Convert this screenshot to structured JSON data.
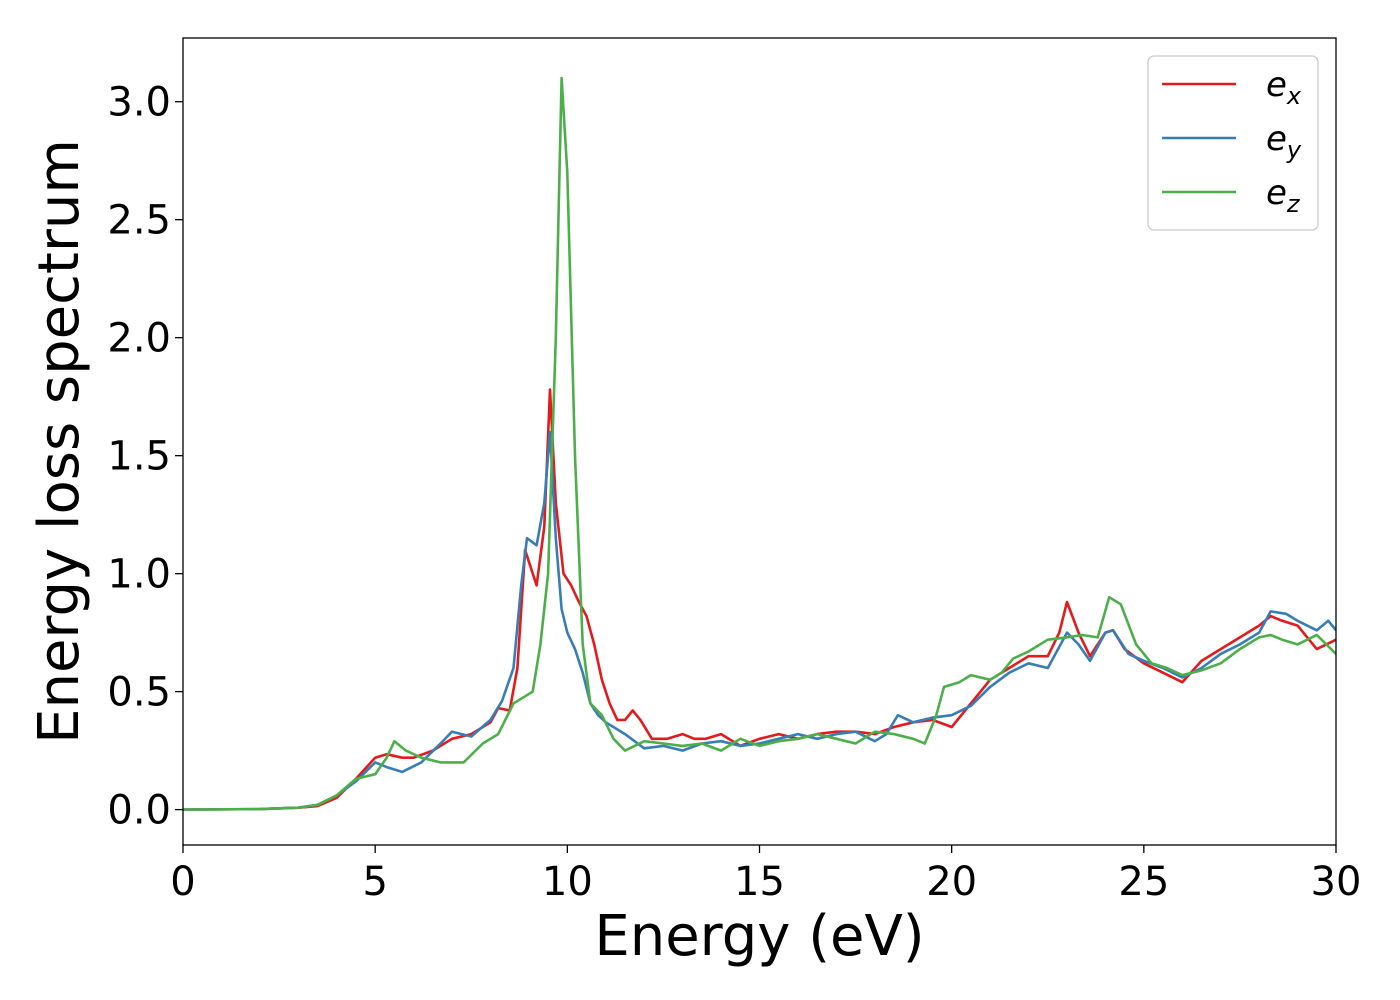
{
  "chart_data": {
    "type": "line",
    "xlabel": "Energy (eV)",
    "ylabel": "Energy loss spectrum",
    "xlim": [
      0,
      30
    ],
    "ylim": [
      -0.15,
      3.27
    ],
    "xticks": [
      "0",
      "5",
      "10",
      "15",
      "20",
      "25",
      "30"
    ],
    "yticks": [
      "0.0",
      "0.5",
      "1.0",
      "1.5",
      "2.0",
      "2.5",
      "3.0"
    ],
    "grid": false,
    "legend_position": "top-right",
    "series": [
      {
        "name": "e",
        "subscript": "x",
        "color": "#e41a1c",
        "points": [
          [
            0,
            0
          ],
          [
            2,
            0.002
          ],
          [
            3,
            0.008
          ],
          [
            3.5,
            0.015
          ],
          [
            4,
            0.05
          ],
          [
            4.5,
            0.13
          ],
          [
            5,
            0.22
          ],
          [
            5.3,
            0.235
          ],
          [
            5.7,
            0.22
          ],
          [
            6,
            0.22
          ],
          [
            6.5,
            0.25
          ],
          [
            7,
            0.3
          ],
          [
            7.5,
            0.32
          ],
          [
            8,
            0.37
          ],
          [
            8.2,
            0.43
          ],
          [
            8.5,
            0.42
          ],
          [
            8.7,
            0.6
          ],
          [
            8.9,
            1.1
          ],
          [
            9.0,
            1.05
          ],
          [
            9.2,
            0.95
          ],
          [
            9.4,
            1.2
          ],
          [
            9.55,
            1.78
          ],
          [
            9.7,
            1.3
          ],
          [
            9.9,
            1.0
          ],
          [
            10.1,
            0.95
          ],
          [
            10.3,
            0.88
          ],
          [
            10.5,
            0.82
          ],
          [
            10.7,
            0.7
          ],
          [
            10.9,
            0.55
          ],
          [
            11.1,
            0.45
          ],
          [
            11.3,
            0.38
          ],
          [
            11.5,
            0.38
          ],
          [
            11.7,
            0.42
          ],
          [
            11.9,
            0.38
          ],
          [
            12.2,
            0.3
          ],
          [
            12.6,
            0.3
          ],
          [
            13.0,
            0.32
          ],
          [
            13.3,
            0.3
          ],
          [
            13.6,
            0.3
          ],
          [
            14.0,
            0.32
          ],
          [
            14.5,
            0.27
          ],
          [
            15.0,
            0.3
          ],
          [
            15.5,
            0.32
          ],
          [
            16.0,
            0.3
          ],
          [
            16.5,
            0.32
          ],
          [
            17.0,
            0.33
          ],
          [
            17.5,
            0.33
          ],
          [
            18.0,
            0.32
          ],
          [
            18.5,
            0.35
          ],
          [
            19.0,
            0.37
          ],
          [
            19.5,
            0.38
          ],
          [
            20.0,
            0.35
          ],
          [
            20.5,
            0.45
          ],
          [
            21.0,
            0.55
          ],
          [
            21.5,
            0.6
          ],
          [
            22.0,
            0.65
          ],
          [
            22.5,
            0.65
          ],
          [
            22.8,
            0.75
          ],
          [
            23.0,
            0.88
          ],
          [
            23.3,
            0.75
          ],
          [
            23.6,
            0.65
          ],
          [
            24.0,
            0.75
          ],
          [
            24.2,
            0.76
          ],
          [
            24.5,
            0.68
          ],
          [
            25.0,
            0.62
          ],
          [
            25.5,
            0.58
          ],
          [
            26.0,
            0.54
          ],
          [
            26.5,
            0.63
          ],
          [
            27.0,
            0.68
          ],
          [
            27.5,
            0.73
          ],
          [
            28.0,
            0.78
          ],
          [
            28.3,
            0.82
          ],
          [
            28.6,
            0.8
          ],
          [
            29.0,
            0.78
          ],
          [
            29.5,
            0.68
          ],
          [
            30.0,
            0.72
          ]
        ]
      },
      {
        "name": "e",
        "subscript": "y",
        "color": "#377eb8",
        "points": [
          [
            0,
            0
          ],
          [
            2,
            0.002
          ],
          [
            3,
            0.008
          ],
          [
            3.5,
            0.02
          ],
          [
            4,
            0.06
          ],
          [
            4.5,
            0.12
          ],
          [
            5,
            0.2
          ],
          [
            5.3,
            0.18
          ],
          [
            5.7,
            0.16
          ],
          [
            6.2,
            0.2
          ],
          [
            6.7,
            0.28
          ],
          [
            7,
            0.33
          ],
          [
            7.5,
            0.31
          ],
          [
            8,
            0.38
          ],
          [
            8.3,
            0.46
          ],
          [
            8.6,
            0.6
          ],
          [
            8.8,
            0.95
          ],
          [
            8.95,
            1.15
          ],
          [
            9.2,
            1.12
          ],
          [
            9.4,
            1.3
          ],
          [
            9.55,
            1.6
          ],
          [
            9.7,
            1.15
          ],
          [
            9.85,
            0.85
          ],
          [
            10.0,
            0.75
          ],
          [
            10.2,
            0.68
          ],
          [
            10.4,
            0.58
          ],
          [
            10.6,
            0.45
          ],
          [
            10.8,
            0.4
          ],
          [
            11.0,
            0.37
          ],
          [
            11.5,
            0.32
          ],
          [
            12.0,
            0.26
          ],
          [
            12.5,
            0.27
          ],
          [
            13.0,
            0.25
          ],
          [
            13.5,
            0.28
          ],
          [
            14.0,
            0.29
          ],
          [
            14.5,
            0.27
          ],
          [
            15.0,
            0.28
          ],
          [
            15.5,
            0.3
          ],
          [
            16.0,
            0.32
          ],
          [
            16.5,
            0.3
          ],
          [
            17.0,
            0.32
          ],
          [
            17.5,
            0.33
          ],
          [
            18.0,
            0.29
          ],
          [
            18.3,
            0.32
          ],
          [
            18.6,
            0.4
          ],
          [
            19.0,
            0.37
          ],
          [
            19.5,
            0.39
          ],
          [
            20.0,
            0.4
          ],
          [
            20.5,
            0.44
          ],
          [
            21.0,
            0.52
          ],
          [
            21.5,
            0.58
          ],
          [
            22.0,
            0.62
          ],
          [
            22.5,
            0.6
          ],
          [
            23.0,
            0.75
          ],
          [
            23.3,
            0.7
          ],
          [
            23.6,
            0.63
          ],
          [
            24.0,
            0.75
          ],
          [
            24.2,
            0.76
          ],
          [
            24.6,
            0.66
          ],
          [
            25.0,
            0.63
          ],
          [
            25.5,
            0.6
          ],
          [
            26.0,
            0.56
          ],
          [
            26.5,
            0.6
          ],
          [
            27.0,
            0.66
          ],
          [
            27.5,
            0.7
          ],
          [
            28.0,
            0.75
          ],
          [
            28.3,
            0.84
          ],
          [
            28.7,
            0.83
          ],
          [
            29.0,
            0.8
          ],
          [
            29.5,
            0.76
          ],
          [
            29.8,
            0.8
          ],
          [
            30.0,
            0.76
          ]
        ]
      },
      {
        "name": "e",
        "subscript": "z",
        "color": "#4daf4a",
        "points": [
          [
            0,
            0
          ],
          [
            2,
            0.002
          ],
          [
            3,
            0.008
          ],
          [
            3.5,
            0.02
          ],
          [
            4,
            0.06
          ],
          [
            4.5,
            0.13
          ],
          [
            5,
            0.15
          ],
          [
            5.3,
            0.22
          ],
          [
            5.5,
            0.29
          ],
          [
            5.8,
            0.25
          ],
          [
            6.2,
            0.22
          ],
          [
            6.7,
            0.2
          ],
          [
            7.3,
            0.2
          ],
          [
            7.8,
            0.28
          ],
          [
            8.2,
            0.32
          ],
          [
            8.6,
            0.45
          ],
          [
            8.9,
            0.48
          ],
          [
            9.1,
            0.5
          ],
          [
            9.3,
            0.7
          ],
          [
            9.5,
            1.0
          ],
          [
            9.7,
            2.0
          ],
          [
            9.85,
            3.1
          ],
          [
            10.0,
            2.7
          ],
          [
            10.2,
            1.5
          ],
          [
            10.4,
            0.7
          ],
          [
            10.6,
            0.45
          ],
          [
            10.9,
            0.4
          ],
          [
            11.2,
            0.3
          ],
          [
            11.5,
            0.25
          ],
          [
            12.0,
            0.29
          ],
          [
            12.5,
            0.28
          ],
          [
            13.0,
            0.27
          ],
          [
            13.5,
            0.28
          ],
          [
            14.0,
            0.25
          ],
          [
            14.5,
            0.3
          ],
          [
            15.0,
            0.27
          ],
          [
            15.5,
            0.29
          ],
          [
            16.0,
            0.3
          ],
          [
            16.5,
            0.32
          ],
          [
            17.0,
            0.3
          ],
          [
            17.5,
            0.28
          ],
          [
            18.0,
            0.33
          ],
          [
            18.5,
            0.32
          ],
          [
            19.0,
            0.3
          ],
          [
            19.3,
            0.28
          ],
          [
            19.6,
            0.4
          ],
          [
            19.8,
            0.52
          ],
          [
            20.2,
            0.54
          ],
          [
            20.5,
            0.57
          ],
          [
            21.0,
            0.55
          ],
          [
            21.3,
            0.58
          ],
          [
            21.6,
            0.64
          ],
          [
            22.0,
            0.67
          ],
          [
            22.5,
            0.72
          ],
          [
            23.0,
            0.73
          ],
          [
            23.4,
            0.74
          ],
          [
            23.8,
            0.73
          ],
          [
            24.1,
            0.9
          ],
          [
            24.4,
            0.87
          ],
          [
            24.8,
            0.7
          ],
          [
            25.2,
            0.62
          ],
          [
            25.6,
            0.6
          ],
          [
            26.0,
            0.57
          ],
          [
            26.5,
            0.59
          ],
          [
            27.0,
            0.62
          ],
          [
            27.5,
            0.68
          ],
          [
            28.0,
            0.73
          ],
          [
            28.3,
            0.74
          ],
          [
            28.6,
            0.72
          ],
          [
            29.0,
            0.7
          ],
          [
            29.5,
            0.74
          ],
          [
            30.0,
            0.66
          ]
        ]
      }
    ]
  }
}
